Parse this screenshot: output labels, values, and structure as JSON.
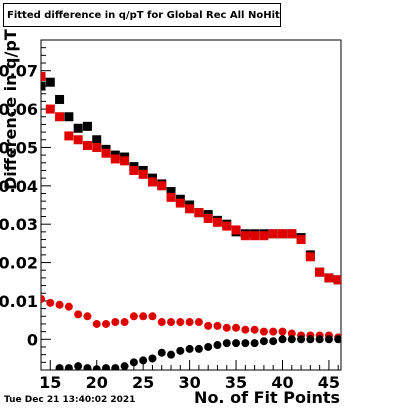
{
  "window": {
    "title": "Fitted difference in q/pT for Global Rec All NoHits",
    "timestamp": "Tue Dec 21 13:40:02 2021"
  },
  "chart_data": {
    "type": "scatter",
    "title": "Fitted difference in q/pT for Global Rec All NoHits",
    "xlabel": "No. of Fit Points",
    "ylabel": "Difference in q/pT",
    "xlim": [
      14,
      46.3
    ],
    "ylim": [
      -0.008,
      0.078
    ],
    "x_ticks": [
      15,
      20,
      25,
      30,
      35,
      40,
      45
    ],
    "y_ticks": [
      0,
      0.01,
      0.02,
      0.03,
      0.04,
      0.05,
      0.06,
      0.07
    ],
    "y_tick_labels": [
      "0",
      "0.01",
      "0.02",
      "0.03",
      "0.04",
      "0.05",
      "0.06",
      "0.07"
    ],
    "grid": false,
    "series": [
      {
        "color": "#000000",
        "marker": "square",
        "x": [
          14,
          15,
          16,
          17,
          18,
          19,
          20,
          21,
          22,
          23,
          24,
          25,
          26,
          27,
          28,
          29,
          30,
          31,
          32,
          33,
          34,
          35,
          36,
          37,
          38,
          39,
          40,
          41,
          42,
          43,
          44,
          45,
          46
        ],
        "y": [
          0.066,
          0.067,
          0.0625,
          0.058,
          0.055,
          0.0555,
          0.052,
          0.0495,
          0.048,
          0.0475,
          0.045,
          0.044,
          0.042,
          0.0405,
          0.0385,
          0.0365,
          0.035,
          0.033,
          0.0325,
          0.031,
          0.03,
          0.028,
          0.0275,
          0.0275,
          0.0275,
          0.0275,
          0.0275,
          0.0275,
          0.0265,
          0.022,
          0.0175,
          0.016,
          0.0155
        ]
      },
      {
        "color": "#e00000",
        "marker": "square",
        "x": [
          14,
          15,
          16,
          17,
          18,
          19,
          20,
          21,
          22,
          23,
          24,
          25,
          26,
          27,
          28,
          29,
          30,
          31,
          32,
          33,
          34,
          35,
          36,
          37,
          38,
          39,
          40,
          41,
          42,
          43,
          44,
          45,
          46
        ],
        "y": [
          0.0685,
          0.06,
          0.058,
          0.053,
          0.052,
          0.0505,
          0.05,
          0.0485,
          0.047,
          0.0465,
          0.044,
          0.043,
          0.041,
          0.04,
          0.037,
          0.0355,
          0.034,
          0.033,
          0.0315,
          0.0305,
          0.0295,
          0.0285,
          0.027,
          0.027,
          0.027,
          0.0275,
          0.0275,
          0.0275,
          0.026,
          0.0215,
          0.0175,
          0.016,
          0.0155
        ]
      },
      {
        "color": "#e00000",
        "marker": "circle",
        "x": [
          14,
          15,
          16,
          17,
          18,
          19,
          20,
          21,
          22,
          23,
          24,
          25,
          26,
          27,
          28,
          29,
          30,
          31,
          32,
          33,
          34,
          35,
          36,
          37,
          38,
          39,
          40,
          41,
          42,
          43,
          44,
          45,
          46
        ],
        "y": [
          0.0105,
          0.0095,
          0.009,
          0.0085,
          0.0065,
          0.006,
          0.004,
          0.004,
          0.0045,
          0.0045,
          0.006,
          0.006,
          0.006,
          0.0045,
          0.0045,
          0.0045,
          0.0045,
          0.0045,
          0.0035,
          0.0035,
          0.003,
          0.003,
          0.0025,
          0.0025,
          0.002,
          0.002,
          0.002,
          0.0015,
          0.001,
          0.001,
          0.001,
          0.001,
          0.0005
        ]
      },
      {
        "color": "#000000",
        "marker": "circle",
        "x": [
          16,
          17,
          18,
          19,
          20,
          21,
          22,
          23,
          24,
          25,
          26,
          27,
          28,
          29,
          30,
          31,
          32,
          33,
          34,
          35,
          36,
          37,
          38,
          39,
          40,
          41,
          42,
          43,
          44,
          45,
          46
        ],
        "y": [
          -0.0075,
          -0.0075,
          -0.007,
          -0.0075,
          -0.0078,
          -0.0075,
          -0.0075,
          -0.007,
          -0.006,
          -0.0055,
          -0.005,
          -0.0035,
          -0.004,
          -0.003,
          -0.0025,
          -0.0025,
          -0.002,
          -0.0015,
          -0.001,
          -0.001,
          -0.001,
          -0.001,
          -0.0005,
          -0.0005,
          0.0,
          0.0,
          0.0,
          0.0,
          0.0,
          0.0,
          0.0
        ]
      }
    ]
  }
}
